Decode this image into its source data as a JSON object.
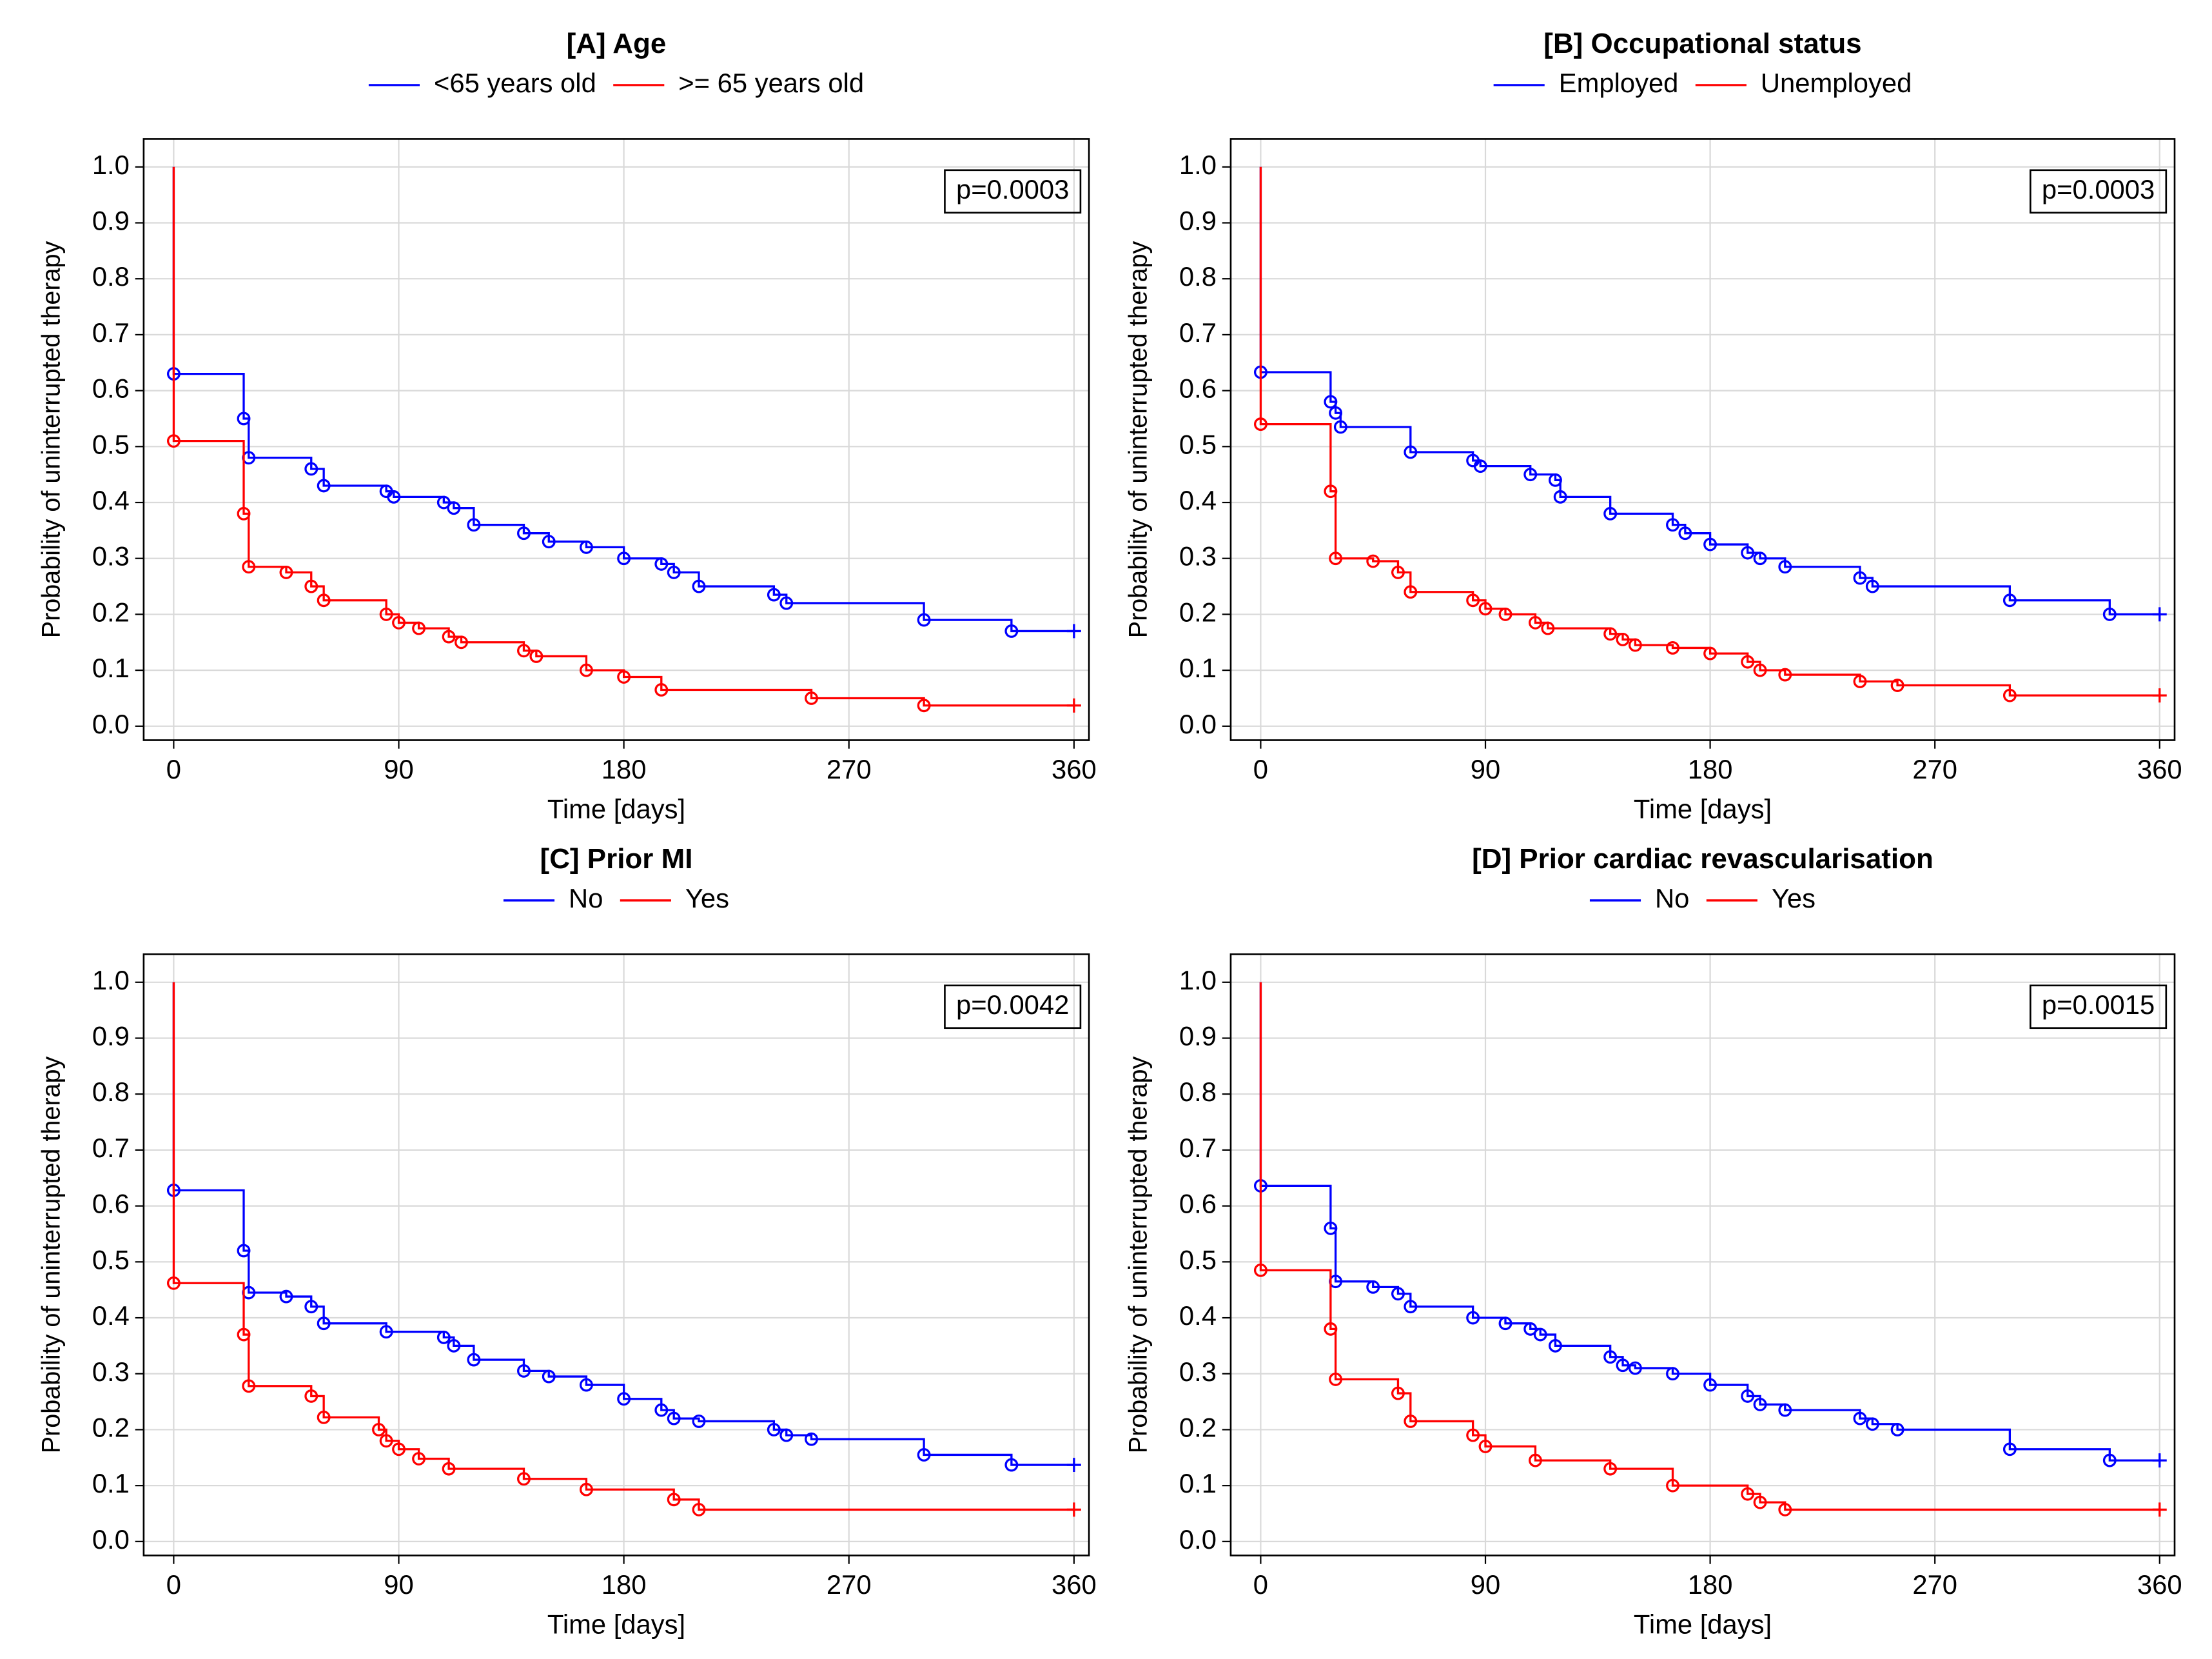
{
  "chart_data": [
    {
      "type": "line",
      "step": true,
      "title": "[A] Age",
      "xlabel": "Time [days]",
      "ylabel": "Probability of uninterrupted therapy",
      "annotation": "p=0.0003",
      "grid": true,
      "xlim": [
        -12,
        366
      ],
      "ylim": [
        -0.025,
        1.05
      ],
      "xticks": [
        0,
        90,
        180,
        270,
        360
      ],
      "yticks": [
        {
          "value": 0,
          "label": "0.0"
        },
        0.1,
        0.2,
        0.3,
        0.4,
        0.5,
        0.6,
        0.7,
        0.8,
        0.9,
        {
          "value": 1,
          "label": "1.0"
        }
      ],
      "series": [
        {
          "name": "<65 years old",
          "color": "#0000ff",
          "x": [
            0,
            0,
            28,
            30,
            55,
            60,
            85,
            88,
            108,
            112,
            120,
            140,
            150,
            165,
            180,
            195,
            200,
            210,
            240,
            245,
            300,
            335,
            360
          ],
          "values": [
            1.0,
            0.63,
            0.55,
            0.48,
            0.46,
            0.43,
            0.42,
            0.41,
            0.4,
            0.39,
            0.36,
            0.345,
            0.33,
            0.32,
            0.3,
            0.29,
            0.275,
            0.25,
            0.235,
            0.22,
            0.19,
            0.17,
            0.17
          ]
        },
        {
          "name": ">= 65 years old",
          "color": "#ff0000",
          "x": [
            0,
            0,
            28,
            30,
            45,
            55,
            60,
            85,
            90,
            98,
            110,
            115,
            140,
            145,
            165,
            180,
            195,
            255,
            300,
            360
          ],
          "values": [
            1.0,
            0.51,
            0.38,
            0.285,
            0.275,
            0.25,
            0.225,
            0.2,
            0.185,
            0.175,
            0.16,
            0.15,
            0.135,
            0.125,
            0.1,
            0.088,
            0.065,
            0.05,
            0.037,
            0.037
          ]
        }
      ]
    },
    {
      "type": "line",
      "step": true,
      "title": "[B] Occupational status",
      "xlabel": "Time [days]",
      "ylabel": "Probability of uninterrupted therapy",
      "annotation": "p=0.0003",
      "grid": true,
      "xlim": [
        -12,
        366
      ],
      "ylim": [
        -0.025,
        1.05
      ],
      "xticks": [
        0,
        90,
        180,
        270,
        360
      ],
      "yticks": [
        {
          "value": 0,
          "label": "0.0"
        },
        0.1,
        0.2,
        0.3,
        0.4,
        0.5,
        0.6,
        0.7,
        0.8,
        0.9,
        {
          "value": 1,
          "label": "1.0"
        }
      ],
      "series": [
        {
          "name": "Employed",
          "color": "#0000ff",
          "x": [
            0,
            0,
            28,
            30,
            32,
            60,
            85,
            88,
            108,
            118,
            120,
            140,
            165,
            170,
            180,
            195,
            200,
            210,
            240,
            245,
            300,
            340,
            360
          ],
          "values": [
            1.0,
            0.633,
            0.58,
            0.56,
            0.535,
            0.49,
            0.475,
            0.465,
            0.45,
            0.44,
            0.41,
            0.38,
            0.36,
            0.345,
            0.325,
            0.31,
            0.3,
            0.285,
            0.265,
            0.25,
            0.225,
            0.2,
            0.2
          ]
        },
        {
          "name": "Unemployed",
          "color": "#ff0000",
          "x": [
            0,
            0,
            28,
            30,
            45,
            55,
            60,
            85,
            90,
            98,
            110,
            115,
            140,
            145,
            150,
            165,
            180,
            195,
            200,
            210,
            240,
            255,
            300,
            360
          ],
          "values": [
            1.0,
            0.54,
            0.42,
            0.3,
            0.295,
            0.275,
            0.24,
            0.225,
            0.21,
            0.2,
            0.185,
            0.175,
            0.165,
            0.155,
            0.145,
            0.14,
            0.13,
            0.115,
            0.1,
            0.092,
            0.08,
            0.073,
            0.055,
            0.055
          ]
        }
      ]
    },
    {
      "type": "line",
      "step": true,
      "title": "[C] Prior MI",
      "xlabel": "Time [days]",
      "ylabel": "Probability of uninterrupted therapy",
      "annotation": "p=0.0042",
      "grid": true,
      "xlim": [
        -12,
        366
      ],
      "ylim": [
        -0.025,
        1.05
      ],
      "xticks": [
        0,
        90,
        180,
        270,
        360
      ],
      "yticks": [
        {
          "value": 0,
          "label": "0.0"
        },
        0.1,
        0.2,
        0.3,
        0.4,
        0.5,
        0.6,
        0.7,
        0.8,
        0.9,
        {
          "value": 1,
          "label": "1.0"
        }
      ],
      "series": [
        {
          "name": "No",
          "color": "#0000ff",
          "x": [
            0,
            0,
            28,
            30,
            45,
            55,
            60,
            85,
            108,
            112,
            120,
            140,
            150,
            165,
            180,
            195,
            200,
            210,
            240,
            245,
            255,
            300,
            335,
            360
          ],
          "values": [
            1.0,
            0.628,
            0.52,
            0.445,
            0.438,
            0.42,
            0.39,
            0.375,
            0.365,
            0.35,
            0.325,
            0.305,
            0.295,
            0.28,
            0.255,
            0.235,
            0.22,
            0.215,
            0.2,
            0.19,
            0.183,
            0.155,
            0.137,
            0.137
          ]
        },
        {
          "name": "Yes",
          "color": "#ff0000",
          "x": [
            0,
            0,
            28,
            30,
            55,
            60,
            82,
            85,
            90,
            98,
            110,
            140,
            165,
            200,
            210,
            360
          ],
          "values": [
            1.0,
            0.462,
            0.37,
            0.278,
            0.26,
            0.222,
            0.2,
            0.18,
            0.165,
            0.148,
            0.13,
            0.112,
            0.093,
            0.075,
            0.057,
            0.057
          ]
        }
      ]
    },
    {
      "type": "line",
      "step": true,
      "title": "[D] Prior cardiac revascularisation",
      "xlabel": "Time [days]",
      "ylabel": "Probability of uninterrupted therapy",
      "annotation": "p=0.0015",
      "grid": true,
      "xlim": [
        -12,
        366
      ],
      "ylim": [
        -0.025,
        1.05
      ],
      "xticks": [
        0,
        90,
        180,
        270,
        360
      ],
      "yticks": [
        {
          "value": 0,
          "label": "0.0"
        },
        0.1,
        0.2,
        0.3,
        0.4,
        0.5,
        0.6,
        0.7,
        0.8,
        0.9,
        {
          "value": 1,
          "label": "1.0"
        }
      ],
      "series": [
        {
          "name": "No",
          "color": "#0000ff",
          "x": [
            0,
            0,
            28,
            30,
            45,
            55,
            60,
            85,
            98,
            108,
            112,
            118,
            140,
            145,
            150,
            165,
            180,
            195,
            200,
            210,
            240,
            245,
            255,
            300,
            340,
            360
          ],
          "values": [
            1.0,
            0.636,
            0.56,
            0.465,
            0.455,
            0.443,
            0.42,
            0.4,
            0.39,
            0.38,
            0.37,
            0.35,
            0.33,
            0.315,
            0.31,
            0.3,
            0.28,
            0.26,
            0.245,
            0.235,
            0.22,
            0.21,
            0.2,
            0.165,
            0.145,
            0.145
          ]
        },
        {
          "name": "Yes",
          "color": "#ff0000",
          "x": [
            0,
            0,
            28,
            30,
            55,
            60,
            85,
            90,
            110,
            140,
            165,
            195,
            200,
            210,
            360
          ],
          "values": [
            1.0,
            0.485,
            0.38,
            0.29,
            0.265,
            0.215,
            0.19,
            0.17,
            0.145,
            0.13,
            0.1,
            0.085,
            0.07,
            0.057,
            0.057
          ]
        }
      ]
    }
  ]
}
